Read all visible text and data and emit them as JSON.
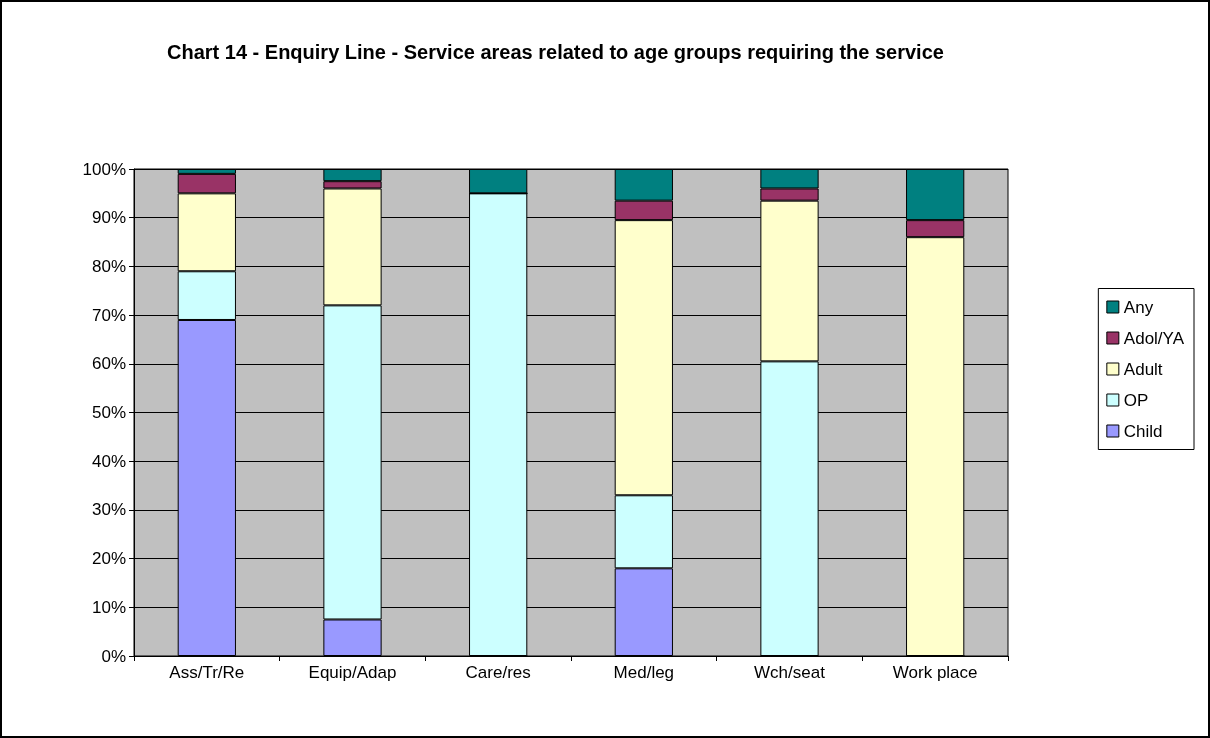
{
  "chart_data": {
    "type": "bar",
    "title": "Chart 14 - Enquiry Line - Service areas related to age groups requiring the service",
    "categories": [
      "Ass/Tr/Re",
      "Equip/Adap",
      "Care/res",
      "Med/leg",
      "Wch/seat",
      "Work place"
    ],
    "stacked": true,
    "series": [
      {
        "name": "Child",
        "color": "#9999ff",
        "values": [
          69,
          7.5,
          0,
          18,
          0,
          0
        ]
      },
      {
        "name": "OP",
        "color": "#ccffff",
        "values": [
          10,
          64.5,
          95,
          15,
          60.5,
          0
        ]
      },
      {
        "name": "Adult",
        "color": "#ffffcc",
        "values": [
          16,
          24,
          0,
          56.5,
          33,
          86
        ]
      },
      {
        "name": "Adol/YA",
        "color": "#993366",
        "values": [
          4,
          1.5,
          0,
          4,
          2.5,
          3.5
        ]
      },
      {
        "name": "Any",
        "color": "#008080",
        "values": [
          1,
          2.5,
          5,
          6.5,
          4,
          10.5
        ]
      }
    ],
    "ylim": [
      0,
      100
    ],
    "yticks": [
      {
        "value": 0,
        "label": "0%"
      },
      {
        "value": 10,
        "label": "10%"
      },
      {
        "value": 20,
        "label": "20%"
      },
      {
        "value": 30,
        "label": "30%"
      },
      {
        "value": 40,
        "label": "40%"
      },
      {
        "value": 50,
        "label": "50%"
      },
      {
        "value": 60,
        "label": "60%"
      },
      {
        "value": 70,
        "label": "70%"
      },
      {
        "value": 80,
        "label": "80%"
      },
      {
        "value": 90,
        "label": "90%"
      },
      {
        "value": 100,
        "label": "100%"
      }
    ],
    "grid": "y",
    "legend": "right"
  }
}
